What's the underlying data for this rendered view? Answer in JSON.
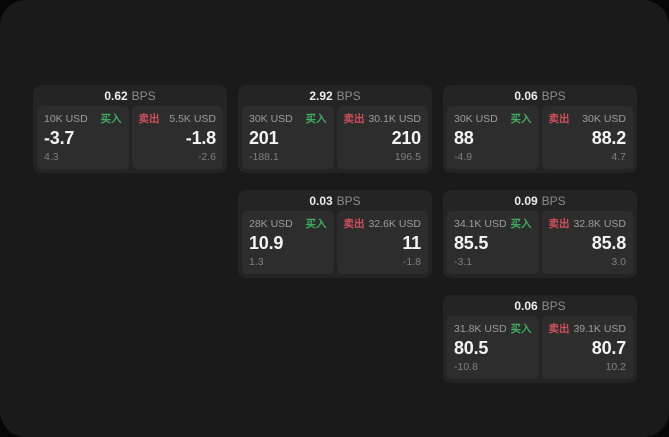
{
  "labels": {
    "buy": "买入",
    "sell": "卖出",
    "bps_unit": "BPS"
  },
  "colors": {
    "background": "#1a1a1a",
    "card": "#242424",
    "panel": "#2d2d2d",
    "buy_green": "#3fad5f",
    "sell_red": "#cf4f5a"
  },
  "cards": [
    {
      "spread": "0.62",
      "buy": {
        "notional": "10K USD",
        "price": "-3.7",
        "change": "4.3"
      },
      "sell": {
        "notional": "5.5K USD",
        "price": "-1.8",
        "change": "-2.6"
      }
    },
    {
      "spread": "2.92",
      "buy": {
        "notional": "30K USD",
        "price": "201",
        "change": "-188.1"
      },
      "sell": {
        "notional": "30.1K USD",
        "price": "210",
        "change": "196.5"
      }
    },
    {
      "spread": "0.06",
      "buy": {
        "notional": "30K USD",
        "price": "88",
        "change": "-4.9"
      },
      "sell": {
        "notional": "30K USD",
        "price": "88.2",
        "change": "4.7"
      }
    },
    {
      "spread": "0.03",
      "buy": {
        "notional": "28K USD",
        "price": "10.9",
        "change": "1.3"
      },
      "sell": {
        "notional": "32.6K USD",
        "price": "11",
        "change": "-1.8"
      }
    },
    {
      "spread": "0.09",
      "buy": {
        "notional": "34.1K USD",
        "price": "85.5",
        "change": "-3.1"
      },
      "sell": {
        "notional": "32.8K USD",
        "price": "85.8",
        "change": "3.0"
      }
    },
    {
      "spread": "0.06",
      "buy": {
        "notional": "31.8K USD",
        "price": "80.5",
        "change": "-10.8"
      },
      "sell": {
        "notional": "39.1K USD",
        "price": "80.7",
        "change": "10.2"
      }
    }
  ]
}
